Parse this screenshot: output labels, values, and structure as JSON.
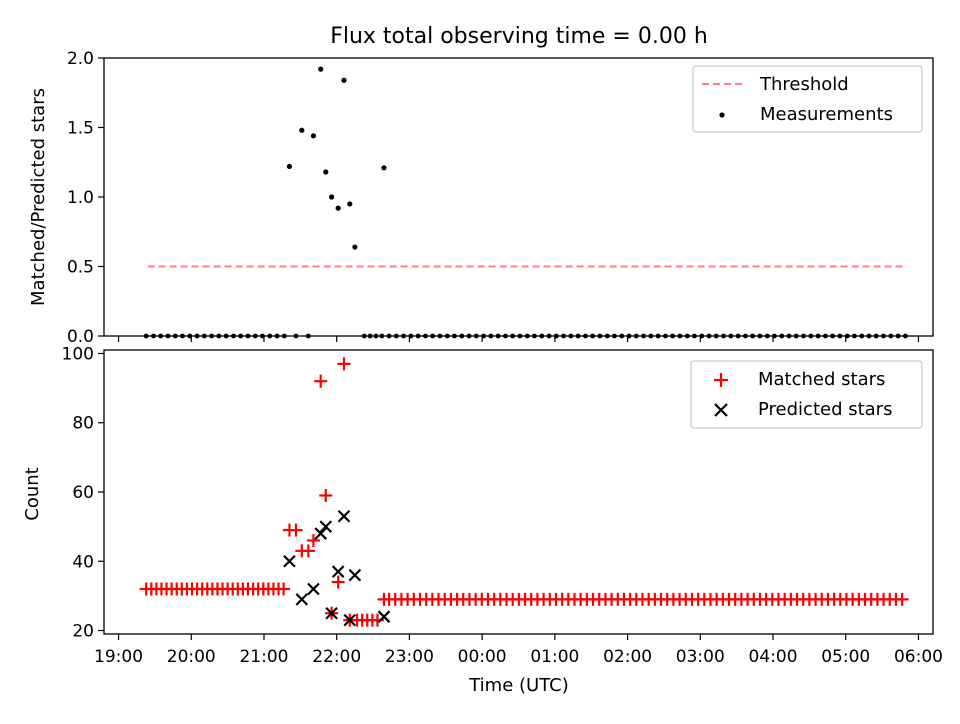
{
  "chart_data": [
    {
      "type": "scatter",
      "title": "Flux total observing time = 0.00 h",
      "xlabel": "",
      "ylabel": "Matched/Predicted stars",
      "ylim": [
        0,
        2.0
      ],
      "yticks": [
        "0.0",
        "0.5",
        "1.0",
        "1.5",
        "2.0"
      ],
      "x_unit": "hours since 19:00 UTC",
      "xlim": [
        -0.2,
        11.2
      ],
      "grid": false,
      "legend_position": "top-right",
      "series": [
        {
          "name": "Threshold",
          "kind": "line",
          "style": "dashed",
          "color": "#ff7f7f",
          "x": [
            0.4,
            10.8
          ],
          "values": [
            0.5,
            0.5
          ]
        },
        {
          "name": "Measurements",
          "kind": "scatter",
          "color": "#000000",
          "x": [
            2.35,
            2.52,
            2.68,
            2.78,
            2.85,
            2.93,
            3.02,
            3.1,
            3.18,
            3.25,
            3.65
          ],
          "values": [
            1.22,
            1.48,
            1.44,
            1.92,
            1.18,
            1.0,
            0.92,
            1.84,
            0.95,
            0.64,
            1.21
          ],
          "zero_rows": [
            {
              "from": 0.38,
              "to": 2.3,
              "step": 0.1
            },
            {
              "from": 3.38,
              "to": 3.62,
              "step": 0.08
            },
            {
              "from": 3.72,
              "to": 10.85,
              "step": 0.1
            }
          ],
          "zero_extras": [
            2.44,
            2.61
          ]
        }
      ]
    },
    {
      "type": "scatter",
      "title": "",
      "xlabel": "Time (UTC)",
      "ylabel": "Count",
      "ylim": [
        19,
        101
      ],
      "yticks": [
        "20",
        "40",
        "60",
        "80",
        "100"
      ],
      "xticks": [
        "19:00",
        "20:00",
        "21:00",
        "22:00",
        "23:00",
        "00:00",
        "01:00",
        "02:00",
        "03:00",
        "04:00",
        "05:00",
        "06:00"
      ],
      "xlim": [
        -0.2,
        11.2
      ],
      "legend_position": "top-right",
      "series": [
        {
          "name": "Matched stars",
          "marker": "plus",
          "color": "#ff0000",
          "baseline_rows": [
            {
              "from": 0.38,
              "to": 2.3,
              "step": 0.07,
              "value": 32
            },
            {
              "from": 3.28,
              "to": 3.58,
              "step": 0.07,
              "value": 23
            },
            {
              "from": 3.72,
              "to": 10.85,
              "step": 0.085,
              "value": 29
            }
          ],
          "x": [
            2.35,
            2.44,
            2.52,
            2.61,
            2.68,
            2.78,
            2.85,
            2.93,
            3.02,
            3.1,
            3.18,
            3.65
          ],
          "values": [
            49,
            49,
            43,
            43,
            46,
            92,
            59,
            25,
            34,
            97,
            23,
            29
          ]
        },
        {
          "name": "Predicted stars",
          "marker": "x",
          "color": "#000000",
          "x": [
            2.35,
            2.52,
            2.68,
            2.78,
            2.85,
            2.93,
            3.02,
            3.1,
            3.18,
            3.25,
            3.65
          ],
          "values": [
            40,
            29,
            32,
            48,
            50,
            25,
            37,
            53,
            23,
            36,
            24
          ]
        }
      ]
    }
  ]
}
